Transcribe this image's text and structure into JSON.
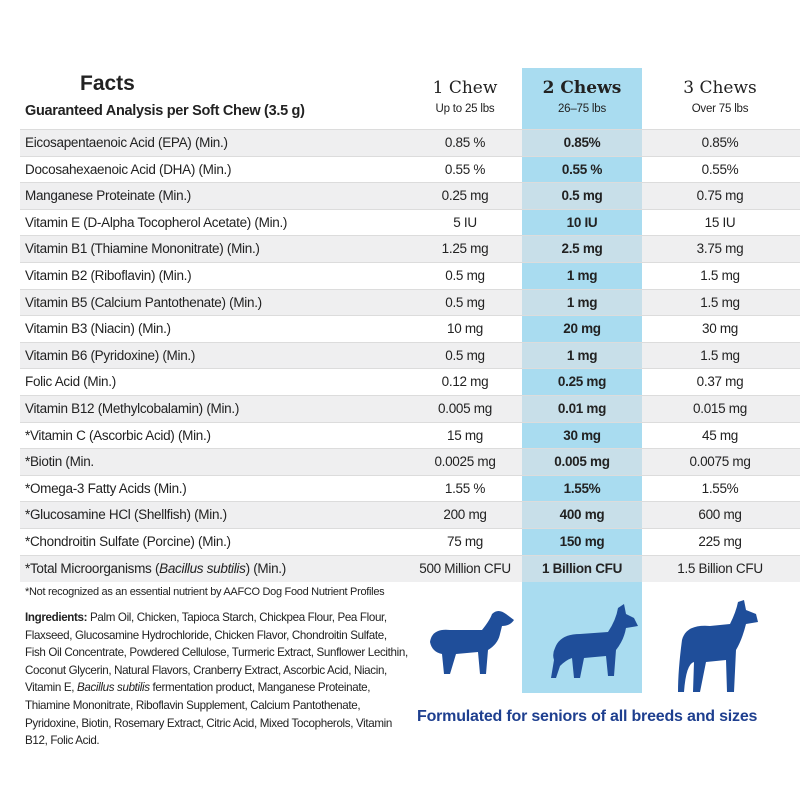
{
  "header": {
    "title": "Facts",
    "subtitle": "Guaranteed Analysis per Soft Chew (3.5  g)",
    "columns": [
      {
        "name": "1 Chew",
        "range": "Up to 25 lbs"
      },
      {
        "name": "2 Chews",
        "range": "26–75 lbs"
      },
      {
        "name": "3 Chews",
        "range": "Over 75 lbs"
      }
    ]
  },
  "table": {
    "rows": [
      [
        [
          "Eicosapentaenoic Acid (EPA) (Min.)"
        ],
        "0.85 %",
        "0.85%",
        "0.85%"
      ],
      [
        [
          "Docosahexaenoic Acid (DHA) (Min.)"
        ],
        "0.55 %",
        "0.55 %",
        "0.55%"
      ],
      [
        [
          "Manganese Proteinate (Min.)"
        ],
        "0.25 mg",
        "0.5 mg",
        "0.75 mg"
      ],
      [
        [
          "Vitamin E (D-Alpha Tocopherol Acetate) (Min.)"
        ],
        "5 IU",
        "10 IU",
        "15 IU"
      ],
      [
        [
          "Vitamin B1 (Thiamine Mononitrate) (Min.)"
        ],
        "1.25 mg",
        "2.5 mg",
        "3.75 mg"
      ],
      [
        [
          "Vitamin B2 (Riboflavin) (Min.)"
        ],
        "0.5 mg",
        "1 mg",
        "1.5 mg"
      ],
      [
        [
          "Vitamin B5 (Calcium Pantothenate) (Min.)"
        ],
        "0.5 mg",
        "1 mg",
        "1.5 mg"
      ],
      [
        [
          "Vitamin B3 (Niacin) (Min.)"
        ],
        "10 mg",
        "20 mg",
        "30 mg"
      ],
      [
        [
          "Vitamin B6 (Pyridoxine) (Min.)"
        ],
        "0.5 mg",
        "1 mg",
        "1.5 mg"
      ],
      [
        [
          "Folic Acid (Min.)"
        ],
        "0.12 mg",
        "0.25 mg",
        "0.37 mg"
      ],
      [
        [
          "Vitamin B12 (Methylcobalamin) (Min.)"
        ],
        "0.005 mg",
        "0.01 mg",
        "0.015 mg"
      ],
      [
        [
          "*Vitamin C (Ascorbic Acid) (Min.)"
        ],
        "15 mg",
        "30 mg",
        "45 mg"
      ],
      [
        [
          "*Biotin (Min."
        ],
        "0.0025 mg",
        "0.005 mg",
        "0.0075 mg"
      ],
      [
        [
          "*Omega-3 Fatty Acids (Min.)"
        ],
        "1.55 %",
        "1.55%",
        "1.55%"
      ],
      [
        [
          "*Glucosamine HCl (Shellfish) (Min.)"
        ],
        "200 mg",
        "400 mg",
        "600 mg"
      ],
      [
        [
          "*Chondroitin Sulfate (Porcine) (Min.)"
        ],
        "75 mg",
        "150 mg",
        "225 mg"
      ],
      [
        [
          "*Total Microorganisms (",
          "Bacillus subtilis",
          ") (Min.)"
        ],
        "500 Million CFU",
        "1 Billion CFU",
        "1.5 Billion CFU"
      ]
    ]
  },
  "footnote": "*Not recognized as an essential nutrient by AAFCO Dog Food Nutrient Profiles",
  "ingredients": {
    "label": "Ingredients:",
    "parts": [
      " Palm Oil, Chicken, Tapioca Starch, Chickpea Flour, Pea Flour, Flaxseed, Glucosamine Hydrochloride, Chicken Flavor, Chondroitin Sulfate, Fish Oil Concentrate, Powdered Cellulose, Turmeric Extract, Sunflower Lecithin, Coconut Glycerin, Natural Flavors, Cranberry Extract, Ascorbic Acid, Niacin, Vitamin E, ",
      "Bacillus subtilis",
      " fermentation product, Manganese Proteinate, Thiamine Mononitrate, Riboflavin Supplement, Calcium Pantothenate, Pyridoxine, Biotin, Rosemary Extract, Citric Acid, Mixed Tocopherols, Vitamin B12, Folic Acid."
    ]
  },
  "tagline": "Formulated for seniors of all breeds and sizes"
}
